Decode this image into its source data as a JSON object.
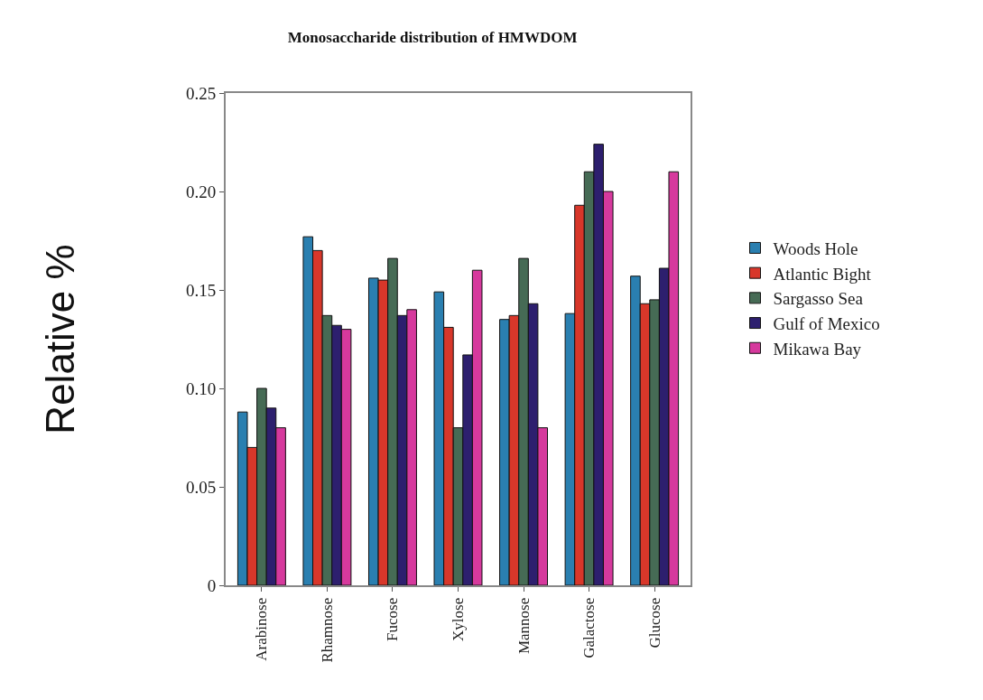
{
  "chart_data": {
    "type": "bar",
    "title": "Monosaccharide distribution of HMWDOM",
    "ylabel": "Relative %",
    "categories": [
      "Arabinose",
      "Rhamnose",
      "Fucose",
      "Xylose",
      "Mannose",
      "Galactose",
      "Glucose"
    ],
    "series": [
      {
        "name": "Woods Hole",
        "color": "#2a7fb0",
        "values": [
          0.088,
          0.177,
          0.156,
          0.149,
          0.135,
          0.138,
          0.157
        ]
      },
      {
        "name": "Atlantic Bight",
        "color": "#d8372a",
        "values": [
          0.07,
          0.17,
          0.155,
          0.131,
          0.137,
          0.193,
          0.143
        ]
      },
      {
        "name": "Sargasso Sea",
        "color": "#466b55",
        "values": [
          0.1,
          0.137,
          0.166,
          0.08,
          0.166,
          0.21,
          0.145
        ]
      },
      {
        "name": "Gulf of Mexico",
        "color": "#2d1f6e",
        "values": [
          0.09,
          0.132,
          0.137,
          0.117,
          0.143,
          0.224,
          0.161
        ]
      },
      {
        "name": "Mikawa Bay",
        "color": "#d6399d",
        "values": [
          0.08,
          0.13,
          0.14,
          0.16,
          0.08,
          0.2,
          0.21
        ]
      }
    ],
    "ylim": [
      0,
      0.25
    ],
    "yticks": [
      {
        "value": 0,
        "label": "0"
      },
      {
        "value": 0.05,
        "label": "0.05"
      },
      {
        "value": 0.1,
        "label": "0.10"
      },
      {
        "value": 0.15,
        "label": "0.15"
      },
      {
        "value": 0.2,
        "label": "0.20"
      },
      {
        "value": 0.25,
        "label": "0.25"
      }
    ],
    "legend": "right"
  }
}
